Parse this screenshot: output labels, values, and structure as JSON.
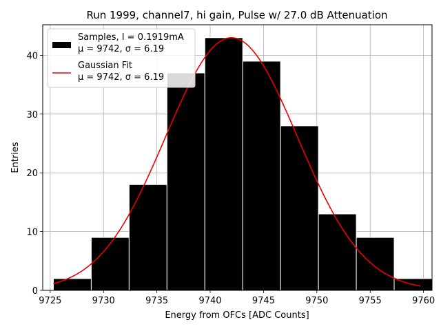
{
  "chart_data": {
    "type": "bar",
    "title": "Run 1999, channel7, hi gain, Pulse w/ 27.0 dB Attenuation",
    "xlabel": "Energy from OFCs [ADC Counts]",
    "ylabel": "Entries",
    "xlim": [
      9724.3,
      9760.8
    ],
    "ylim": [
      0,
      45.2
    ],
    "xticks": [
      9725,
      9730,
      9735,
      9740,
      9745,
      9750,
      9755,
      9760
    ],
    "yticks": [
      0,
      10,
      20,
      30,
      40
    ],
    "grid": true,
    "histogram": {
      "bin_edges": [
        9725.3,
        9728.85,
        9732.4,
        9735.95,
        9739.5,
        9743.05,
        9746.6,
        9750.15,
        9753.7,
        9757.25,
        9760.8
      ],
      "counts": [
        2,
        9,
        18,
        37,
        43,
        39,
        28,
        13,
        9,
        2
      ],
      "color": "#000000",
      "edgecolor": "#ffffff"
    },
    "fit": {
      "type": "gaussian",
      "mu": 9742,
      "sigma": 6.19,
      "amplitude": 43,
      "x_range": [
        9725.3,
        9759.7
      ],
      "color": "#ee0000"
    },
    "legend": {
      "position": "upper left",
      "entries": [
        {
          "kind": "patch",
          "color": "#000000",
          "line1": "Samples, I = 0.1919mA",
          "line2_pre": "μ = 9742, ",
          "line2_post": "σ = 6.19"
        },
        {
          "kind": "line",
          "color": "#ee0000",
          "line1": "Gaussian Fit",
          "line2_pre": "μ = 9742, ",
          "line2_post": "σ = 6.19"
        }
      ]
    }
  }
}
